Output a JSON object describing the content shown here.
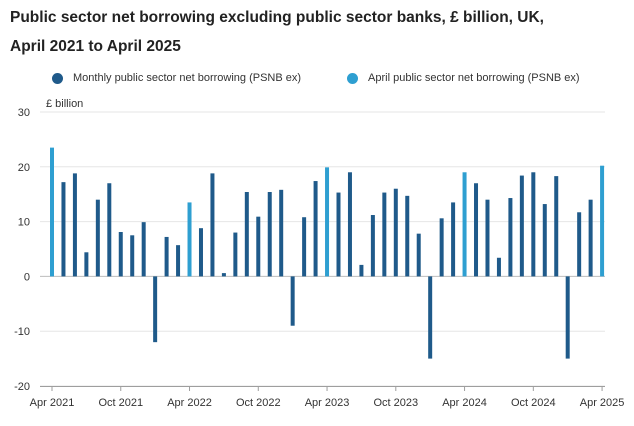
{
  "chart_data": {
    "type": "bar",
    "title_line1": "Public sector net borrowing excluding public sector banks, £ billion, UK,",
    "title_line2": "April 2021 to April 2025",
    "ylabel": "£ billion",
    "ylim": [
      -20,
      30
    ],
    "yticks": [
      30,
      20,
      10,
      0,
      -10,
      -20
    ],
    "grid": true,
    "legend_position": "top",
    "series": [
      {
        "name": "Monthly public sector net borrowing (PSNB ex)",
        "color": "#1f5a8a"
      },
      {
        "name": "April public sector net borrowing (PSNB ex)",
        "color": "#2e9fd1"
      }
    ],
    "x_tick_labels": [
      "Apr 2021",
      "Oct 2021",
      "Apr 2022",
      "Oct 2022",
      "Apr 2023",
      "Oct 2023",
      "Apr 2024",
      "Oct 2024",
      "Apr 2025"
    ],
    "categories": [
      "Apr 2021",
      "May 2021",
      "Jun 2021",
      "Jul 2021",
      "Aug 2021",
      "Sep 2021",
      "Oct 2021",
      "Nov 2021",
      "Dec 2021",
      "Jan 2022",
      "Feb 2022",
      "Mar 2022",
      "Apr 2022",
      "May 2022",
      "Jun 2022",
      "Jul 2022",
      "Aug 2022",
      "Sep 2022",
      "Oct 2022",
      "Nov 2022",
      "Dec 2022",
      "Jan 2023",
      "Feb 2023",
      "Mar 2023",
      "Apr 2023",
      "May 2023",
      "Jun 2023",
      "Jul 2023",
      "Aug 2023",
      "Sep 2023",
      "Oct 2023",
      "Nov 2023",
      "Dec 2023",
      "Jan 2024",
      "Feb 2024",
      "Mar 2024",
      "Apr 2024",
      "May 2024",
      "Jun 2024",
      "Jul 2024",
      "Aug 2024",
      "Sep 2024",
      "Oct 2024",
      "Nov 2024",
      "Dec 2024",
      "Jan 2025",
      "Feb 2025",
      "Mar 2025",
      "Apr 2025"
    ],
    "values": [
      23.5,
      17.2,
      18.8,
      4.4,
      14.0,
      17.0,
      8.1,
      7.5,
      9.9,
      -12.0,
      7.2,
      5.7,
      13.5,
      8.8,
      18.8,
      0.6,
      8.0,
      15.4,
      10.9,
      15.4,
      15.8,
      -9.0,
      10.8,
      17.4,
      19.9,
      15.3,
      19.0,
      2.1,
      11.2,
      15.3,
      16.0,
      14.7,
      7.8,
      -15.0,
      10.6,
      13.5,
      19.0,
      17.0,
      14.0,
      3.4,
      14.3,
      18.4,
      19.0,
      13.2,
      18.3,
      -15.0,
      11.7,
      14.0,
      20.2
    ],
    "april_indices": [
      0,
      12,
      24,
      36,
      48
    ]
  }
}
